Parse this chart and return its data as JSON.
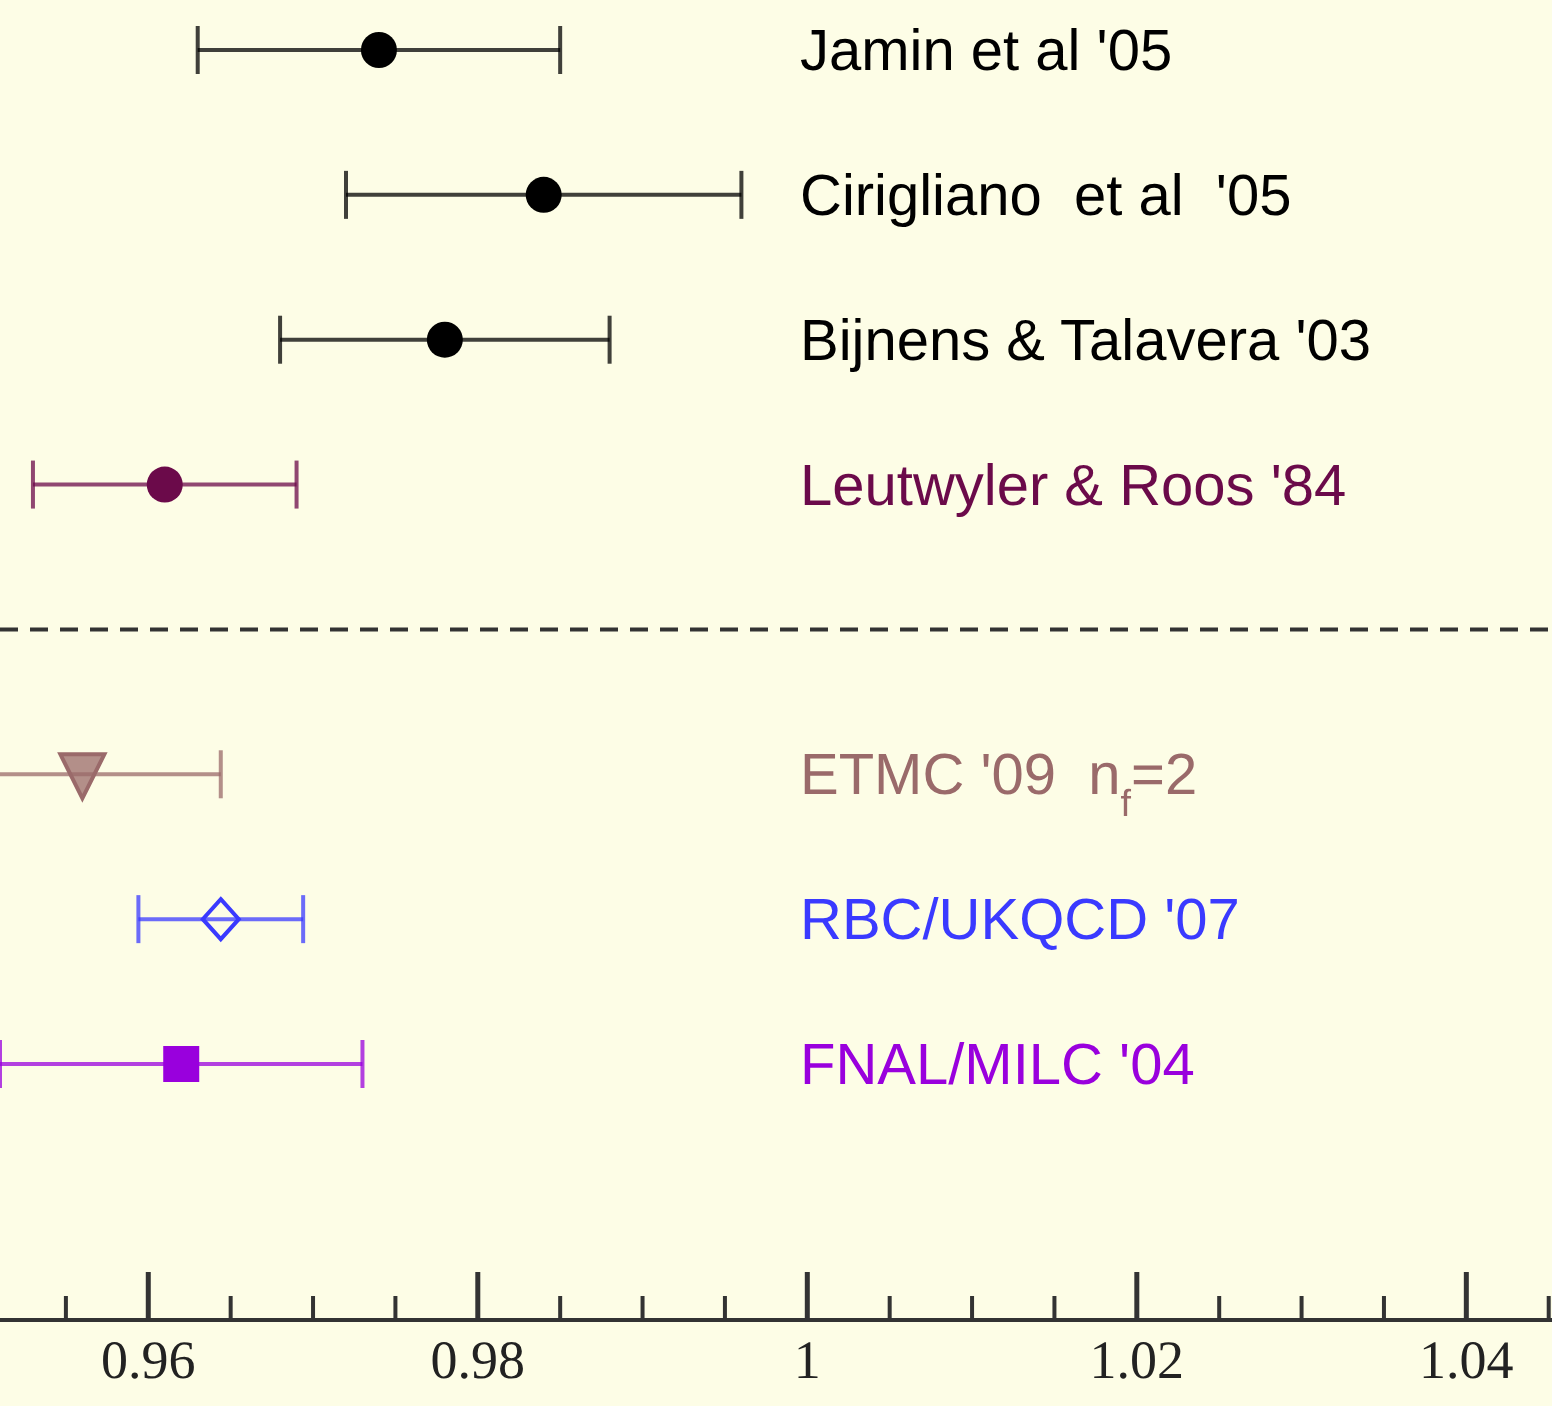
{
  "chart_data": {
    "type": "scatter",
    "orientation": "horizontal",
    "categories": [
      "Jamin et al '05",
      "Cirigliano  et al  '05",
      "Bijnens & Talavera '03",
      "Leutwyler & Roos '84",
      null,
      "ETMC '09  n$_{f}$=2",
      "RBC/UKQCD '07",
      "FNAL/MILC '04"
    ],
    "series": [
      {
        "color": "#000000",
        "marker": "circle",
        "values": [
          0.974,
          0.984,
          0.978,
          null,
          null,
          null,
          null,
          null
        ],
        "errors": [
          0.011,
          0.012,
          0.01,
          null,
          null,
          null,
          null,
          null
        ]
      },
      {
        "color": "#6b0a4a",
        "marker": "circle",
        "values": [
          null,
          null,
          null,
          0.961,
          null,
          null,
          null,
          null
        ],
        "errors": [
          null,
          null,
          null,
          0.008,
          null,
          null,
          null,
          null
        ]
      },
      {
        "color": "#9a6a6a",
        "marker": "triangle",
        "values": [
          null,
          null,
          null,
          null,
          null,
          0.956,
          null,
          null
        ],
        "errors": [
          null,
          null,
          null,
          null,
          null,
          0.0084,
          null,
          null
        ]
      },
      {
        "color": "#3a3aff",
        "marker": "diamond",
        "values": [
          null,
          null,
          null,
          null,
          null,
          null,
          0.9644,
          null
        ],
        "errors": [
          null,
          null,
          null,
          null,
          null,
          null,
          0.005,
          null
        ]
      },
      {
        "color": "#9900dd",
        "marker": "square",
        "values": [
          null,
          null,
          null,
          null,
          null,
          null,
          null,
          0.962
        ],
        "errors": [
          null,
          null,
          null,
          null,
          null,
          null,
          null,
          0.011
        ]
      }
    ],
    "xlim": [
      0.951,
      1.0452
    ],
    "xticks": [
      0.96,
      0.98,
      1,
      1.02,
      1.04
    ]
  }
}
